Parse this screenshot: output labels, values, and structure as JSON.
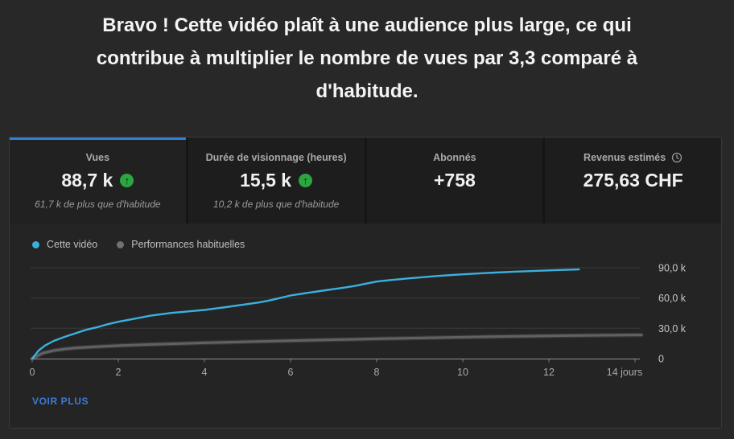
{
  "banner": {
    "lines": [
      "Bravo ! Cette vidéo plaît à une audience plus large, ce qui",
      "contribue à multiplier le nombre de vues par 3,3 comparé à",
      "d'habitude."
    ]
  },
  "tabs": [
    {
      "label": "Vues",
      "value": "88,7 k",
      "trend": "up",
      "subtitle": "61,7 k de plus que d'habitude",
      "active": true
    },
    {
      "label": "Durée de visionnage (heures)",
      "value": "15,5 k",
      "trend": "up",
      "subtitle": "10,2 k de plus que d'habitude",
      "active": false
    },
    {
      "label": "Abonnés",
      "value": "+758",
      "active": false
    },
    {
      "label": "Revenus estimés",
      "value": "275,63 CHF",
      "info_icon": "clock-icon",
      "active": false
    }
  ],
  "legend": [
    {
      "label": "Cette vidéo",
      "color": "#3cb0dd"
    },
    {
      "label": "Performances habituelles",
      "color": "#717171"
    }
  ],
  "footer": {
    "more_label": "VOIR PLUS"
  },
  "theme": {
    "page_bg": "#282828",
    "panel_bg": "#242424",
    "tab_bg": "#1d1d1d",
    "accent_blue": "#2e7fd4",
    "link_blue": "#3a7dd8",
    "line_blue": "#3cb0dd",
    "line_gray": "#666666",
    "green_badge": "#2ba640"
  },
  "chart_data": {
    "type": "line",
    "title": "",
    "xlabel": "jours",
    "ylabel": "",
    "grid": true,
    "legend_position": "top-left",
    "x_axis": {
      "tick_values": [
        0,
        2,
        4,
        6,
        8,
        10,
        12,
        14
      ],
      "tick_labels": [
        "0",
        "2",
        "4",
        "6",
        "8",
        "10",
        "12",
        "14 jours"
      ],
      "min": 0,
      "max": 14.2
    },
    "y_axis": {
      "tick_values": [
        0,
        30000,
        60000,
        90000
      ],
      "tick_labels": [
        "0",
        "30,0 k",
        "60,0 k",
        "90,0 k"
      ],
      "min": 0,
      "max": 90000,
      "position": "right"
    },
    "series": [
      {
        "name": "Cette vidéo",
        "color": "#3cb0dd",
        "points": [
          [
            0,
            0
          ],
          [
            0.15,
            8000
          ],
          [
            0.3,
            13000
          ],
          [
            0.5,
            17500
          ],
          [
            0.75,
            21500
          ],
          [
            1,
            25000
          ],
          [
            1.25,
            28500
          ],
          [
            1.5,
            31000
          ],
          [
            1.75,
            34000
          ],
          [
            2,
            36500
          ],
          [
            2.25,
            38500
          ],
          [
            2.5,
            40500
          ],
          [
            2.75,
            42500
          ],
          [
            3,
            44000
          ],
          [
            3.25,
            45300
          ],
          [
            3.5,
            46300
          ],
          [
            3.75,
            47200
          ],
          [
            4,
            48200
          ],
          [
            4.25,
            49600
          ],
          [
            4.5,
            51000
          ],
          [
            4.75,
            52500
          ],
          [
            5,
            54000
          ],
          [
            5.25,
            55500
          ],
          [
            5.5,
            57500
          ],
          [
            5.75,
            60000
          ],
          [
            6,
            62500
          ],
          [
            6.25,
            64200
          ],
          [
            6.5,
            65800
          ],
          [
            6.75,
            67300
          ],
          [
            7,
            68800
          ],
          [
            7.25,
            70300
          ],
          [
            7.5,
            72000
          ],
          [
            7.75,
            74200
          ],
          [
            8,
            76300
          ],
          [
            8.25,
            77500
          ],
          [
            8.5,
            78500
          ],
          [
            8.75,
            79500
          ],
          [
            9,
            80400
          ],
          [
            9.25,
            81300
          ],
          [
            9.5,
            82100
          ],
          [
            9.75,
            82800
          ],
          [
            10,
            83500
          ],
          [
            10.25,
            84100
          ],
          [
            10.5,
            84700
          ],
          [
            10.75,
            85200
          ],
          [
            11,
            85700
          ],
          [
            11.25,
            86200
          ],
          [
            11.5,
            86600
          ],
          [
            11.75,
            87000
          ],
          [
            12,
            87400
          ],
          [
            12.25,
            87800
          ],
          [
            12.5,
            88100
          ],
          [
            12.7,
            88400
          ]
        ]
      },
      {
        "name": "Performances habituelles",
        "color": "#666666",
        "points": [
          [
            0,
            0
          ],
          [
            0.25,
            5500
          ],
          [
            0.5,
            8000
          ],
          [
            0.75,
            9500
          ],
          [
            1,
            10500
          ],
          [
            1.5,
            11800
          ],
          [
            2,
            12800
          ],
          [
            2.5,
            13600
          ],
          [
            3,
            14300
          ],
          [
            3.5,
            15000
          ],
          [
            4,
            15600
          ],
          [
            4.5,
            16200
          ],
          [
            5,
            16700
          ],
          [
            5.5,
            17200
          ],
          [
            6,
            17700
          ],
          [
            6.5,
            18200
          ],
          [
            7,
            18700
          ],
          [
            7.5,
            19100
          ],
          [
            8,
            19600
          ],
          [
            8.5,
            20000
          ],
          [
            9,
            20400
          ],
          [
            9.5,
            20800
          ],
          [
            10,
            21200
          ],
          [
            10.5,
            21600
          ],
          [
            11,
            21900
          ],
          [
            11.5,
            22200
          ],
          [
            12,
            22500
          ],
          [
            12.5,
            22800
          ],
          [
            13,
            23000
          ],
          [
            13.5,
            23200
          ],
          [
            14,
            23400
          ],
          [
            14.15,
            23450
          ]
        ]
      }
    ]
  }
}
